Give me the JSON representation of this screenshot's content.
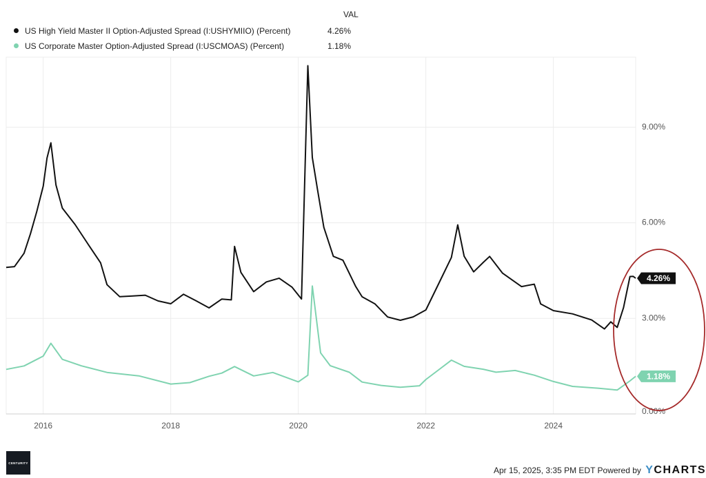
{
  "legend": {
    "header": "VAL",
    "items": [
      {
        "label": "US High Yield Master II Option-Adjusted Spread (I:USHYMIIO) (Percent)",
        "value": "4.26%",
        "color": "#111111"
      },
      {
        "label": "US Corporate Master Option-Adjusted Spread (I:USCMOAS) (Percent)",
        "value": "1.18%",
        "color": "#7fd3b0"
      }
    ]
  },
  "footer": {
    "timestamp": "Apr 15, 2025, 3:35 PM EDT Powered by",
    "brand_y": "Y",
    "brand_rest": "CHARTS"
  },
  "logo_text": "CENTURITY",
  "chart_data": {
    "type": "line",
    "xlim": [
      2015.42,
      2025.29
    ],
    "ylim": [
      0,
      11.2
    ],
    "x_ticks": [
      {
        "value": 2016,
        "label": "2016"
      },
      {
        "value": 2018,
        "label": "2018"
      },
      {
        "value": 2020,
        "label": "2020"
      },
      {
        "value": 2022,
        "label": "2022"
      },
      {
        "value": 2024,
        "label": "2024"
      }
    ],
    "y_ticks": [
      {
        "value": 0,
        "label": "0.00%"
      },
      {
        "value": 3,
        "label": "3.00%"
      },
      {
        "value": 6,
        "label": "6.00%"
      },
      {
        "value": 9,
        "label": "9.00%"
      }
    ],
    "grid": true,
    "legend_position": "top-left",
    "series": [
      {
        "name": "US High Yield Master II Option-Adjusted Spread (I:USHYMIIO) (Percent)",
        "color": "#111111",
        "end_label": "4.26%",
        "x": [
          2015.42,
          2015.55,
          2015.7,
          2015.8,
          2015.9,
          2016.0,
          2016.06,
          2016.12,
          2016.2,
          2016.3,
          2016.5,
          2016.7,
          2016.9,
          2017.0,
          2017.2,
          2017.4,
          2017.6,
          2017.8,
          2018.0,
          2018.2,
          2018.4,
          2018.6,
          2018.8,
          2018.95,
          2019.0,
          2019.1,
          2019.3,
          2019.5,
          2019.7,
          2019.9,
          2020.05,
          2020.15,
          2020.22,
          2020.3,
          2020.4,
          2020.55,
          2020.7,
          2020.9,
          2021.0,
          2021.2,
          2021.4,
          2021.6,
          2021.8,
          2022.0,
          2022.2,
          2022.4,
          2022.5,
          2022.6,
          2022.75,
          2022.9,
          2023.0,
          2023.2,
          2023.5,
          2023.7,
          2023.8,
          2024.0,
          2024.3,
          2024.6,
          2024.8,
          2024.9,
          2025.0,
          2025.1,
          2025.2,
          2025.25,
          2025.29
        ],
        "y": [
          4.6,
          4.6,
          5.0,
          5.6,
          6.3,
          7.1,
          8.0,
          8.5,
          7.2,
          6.5,
          6.0,
          5.4,
          4.8,
          4.1,
          3.7,
          3.7,
          3.7,
          3.5,
          3.4,
          3.7,
          3.5,
          3.3,
          3.6,
          3.6,
          5.3,
          4.5,
          3.9,
          4.2,
          4.3,
          4.0,
          3.6,
          10.9,
          8.0,
          7.0,
          5.8,
          4.9,
          4.8,
          4.0,
          3.7,
          3.5,
          3.1,
          3.0,
          3.1,
          3.3,
          4.1,
          4.9,
          5.9,
          4.9,
          4.4,
          4.7,
          4.9,
          4.4,
          4.0,
          4.1,
          3.5,
          3.3,
          3.2,
          3.0,
          2.7,
          2.9,
          2.7,
          3.3,
          4.26,
          4.26,
          4.26
        ]
      },
      {
        "name": "US Corporate Master Option-Adjusted Spread (I:USCMOAS) (Percent)",
        "color": "#7fd3b0",
        "end_label": "1.18%",
        "x": [
          2015.42,
          2015.7,
          2015.9,
          2016.0,
          2016.12,
          2016.3,
          2016.6,
          2017.0,
          2017.5,
          2018.0,
          2018.3,
          2018.6,
          2018.8,
          2019.0,
          2019.3,
          2019.6,
          2020.0,
          2020.15,
          2020.22,
          2020.35,
          2020.5,
          2020.8,
          2021.0,
          2021.3,
          2021.6,
          2021.9,
          2022.0,
          2022.2,
          2022.4,
          2022.6,
          2022.9,
          2023.1,
          2023.4,
          2023.7,
          2024.0,
          2024.3,
          2024.7,
          2025.0,
          2025.1,
          2025.2,
          2025.29
        ],
        "y": [
          1.4,
          1.5,
          1.7,
          1.8,
          2.2,
          1.7,
          1.5,
          1.3,
          1.2,
          0.95,
          1.0,
          1.2,
          1.3,
          1.5,
          1.2,
          1.3,
          1.0,
          1.2,
          4.0,
          1.9,
          1.5,
          1.3,
          1.0,
          0.9,
          0.85,
          0.9,
          1.1,
          1.4,
          1.7,
          1.5,
          1.4,
          1.3,
          1.35,
          1.2,
          1.0,
          0.85,
          0.8,
          0.75,
          0.9,
          1.05,
          1.18
        ]
      }
    ]
  }
}
